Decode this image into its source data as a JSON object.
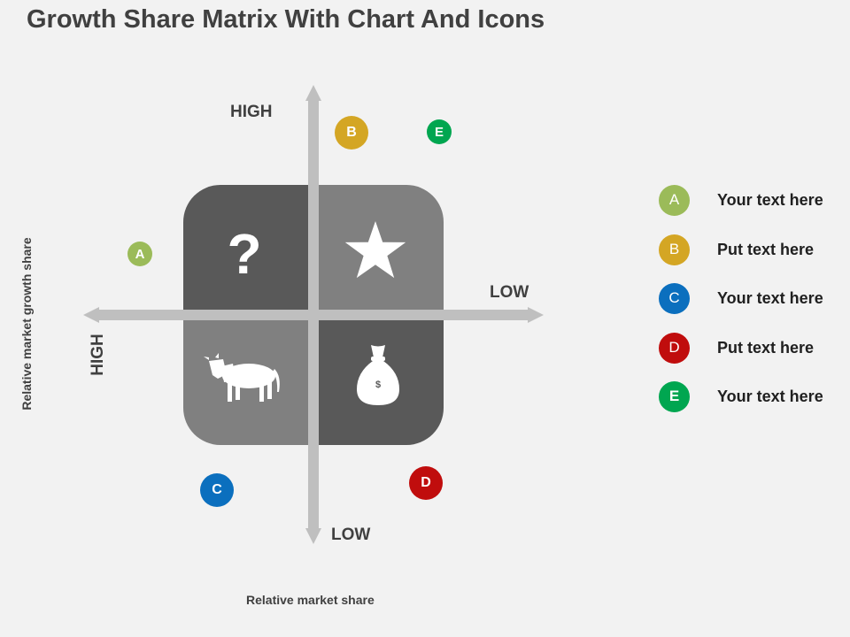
{
  "title": "Growth Share Matrix With Chart And Icons",
  "axes": {
    "y_high": "HIGH",
    "y_low": "LOW",
    "x_high": "HIGH",
    "x_low": "LOW",
    "y_label": "Relative market growth share",
    "x_label": "Relative market share"
  },
  "quadrants": [
    {
      "icon": "question-mark-icon",
      "glyph": "?",
      "color": "#595959"
    },
    {
      "icon": "star-icon",
      "color": "#808080"
    },
    {
      "icon": "cow-icon",
      "color": "#808080"
    },
    {
      "icon": "money-bag-icon",
      "glyph": "$",
      "color": "#595959"
    }
  ],
  "badges": [
    {
      "letter": "A",
      "color": "#9bbb59"
    },
    {
      "letter": "B",
      "color": "#d4a624"
    },
    {
      "letter": "C",
      "color": "#0b6fbe"
    },
    {
      "letter": "D",
      "color": "#c00d0d"
    },
    {
      "letter": "E",
      "color": "#00a650"
    }
  ],
  "legend": [
    {
      "letter": "A",
      "text": "Your text here",
      "color": "#9bbb59"
    },
    {
      "letter": "B",
      "text": "Put text here",
      "color": "#d4a624"
    },
    {
      "letter": "C",
      "text": "Your text here",
      "color": "#0b6fbe"
    },
    {
      "letter": "D",
      "text": "Put text here",
      "color": "#c00d0d"
    },
    {
      "letter": "E",
      "text": "Your text here",
      "color": "#00a650"
    }
  ],
  "arrow_color": "#bfbfbf"
}
